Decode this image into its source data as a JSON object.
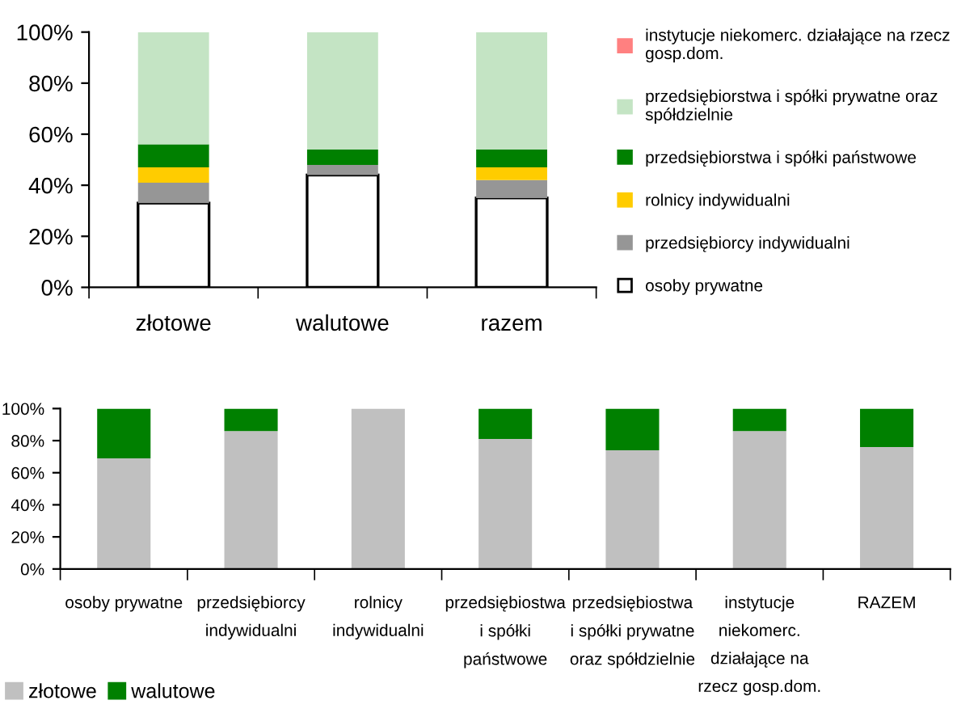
{
  "chart_data": [
    {
      "type": "bar",
      "stacked": true,
      "categories": [
        "złotowe",
        "walutowe",
        "razem"
      ],
      "series": [
        {
          "name": "osoby prywatne",
          "color": "#ffffff",
          "values": [
            33,
            44,
            35
          ]
        },
        {
          "name": "przedsiębiorcy indywidualni",
          "color": "#969696",
          "values": [
            8,
            4,
            7
          ]
        },
        {
          "name": "rolnicy indywidualni",
          "color": "#ffcc00",
          "values": [
            6,
            0,
            5
          ]
        },
        {
          "name": "przedsiębiorstwa i spółki państwowe",
          "color": "#008000",
          "values": [
            9,
            6,
            7
          ]
        },
        {
          "name": "przedsiębiorstwa i spółki prywatne oraz\nspółdzielnie",
          "color": "#c4e4c4",
          "values": [
            44,
            46,
            46
          ]
        },
        {
          "name": "instytucje niekomerc. działające na rzecz\ngosp.dom.",
          "color": "#ff8080",
          "values": [
            0,
            0,
            0
          ]
        }
      ],
      "ylim": [
        0,
        100
      ],
      "yticks": [
        {
          "value": 0,
          "label": "0%"
        },
        {
          "value": 20,
          "label": "20%"
        },
        {
          "value": 40,
          "label": "40%"
        },
        {
          "value": 60,
          "label": "60%"
        },
        {
          "value": 80,
          "label": "80%"
        },
        {
          "value": 100,
          "label": "100%"
        }
      ],
      "legend": "right",
      "grid": false
    },
    {
      "type": "bar",
      "stacked": true,
      "categories": [
        "osoby prywatne",
        "przedsiębiorcy\nindywidualni",
        "rolnicy\nindywidualni",
        "przedsiębiostwa\ni spółki\npaństwowe",
        "przedsiębiostwa\ni spółki prywatne\noraz spółdzielnie",
        "instytucje\nniekomerc.\ndziałające na\nrzecz gosp.dom.",
        "RAZEM"
      ],
      "series": [
        {
          "name": "złotowe",
          "color": "#c0c0c0",
          "values": [
            69,
            86,
            100,
            81,
            74,
            86,
            76
          ]
        },
        {
          "name": "walutowe",
          "color": "#008000",
          "values": [
            31,
            14,
            0,
            19,
            26,
            14,
            24
          ]
        }
      ],
      "ylim": [
        0,
        100
      ],
      "yticks": [
        {
          "value": 0,
          "label": "0%"
        },
        {
          "value": 20,
          "label": "20%"
        },
        {
          "value": 40,
          "label": "40%"
        },
        {
          "value": 60,
          "label": "60%"
        },
        {
          "value": 80,
          "label": "80%"
        },
        {
          "value": 100,
          "label": "100%"
        }
      ],
      "legend": "bottom",
      "grid": false
    }
  ]
}
